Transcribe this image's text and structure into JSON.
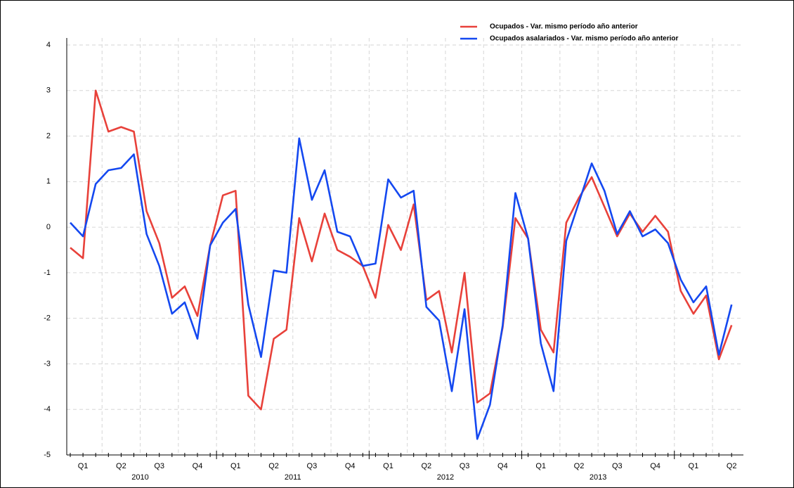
{
  "chart_data": {
    "type": "line",
    "categories": [
      null,
      "Q1",
      null,
      null,
      "Q2",
      null,
      null,
      "Q3",
      null,
      null,
      "Q4",
      null,
      null,
      "Q1",
      null,
      null,
      "Q2",
      null,
      null,
      "Q3",
      null,
      null,
      "Q4",
      null,
      null,
      "Q1",
      null,
      null,
      "Q2",
      null,
      null,
      "Q3",
      null,
      null,
      "Q4",
      null,
      null,
      "Q1",
      null,
      null,
      "Q2",
      null,
      null,
      "Q3",
      null,
      null,
      "Q4",
      null,
      null,
      "Q1",
      null,
      null,
      "Q2"
    ],
    "years": [
      "2010",
      "2011",
      "2012",
      "2013"
    ],
    "series": [
      {
        "name": "Ocupados - Var. mismo período año anterior",
        "color": "#e8413a",
        "values": [
          -0.45,
          -0.68,
          3.0,
          2.1,
          2.2,
          2.1,
          0.35,
          -0.35,
          -1.55,
          -1.3,
          -1.95,
          -0.4,
          0.7,
          0.8,
          -3.7,
          -4.0,
          -2.45,
          -2.25,
          0.2,
          -0.75,
          0.3,
          -0.5,
          -0.65,
          -0.85,
          -1.55,
          0.05,
          -0.5,
          0.5,
          -1.6,
          -1.4,
          -2.75,
          -1.0,
          -3.85,
          -3.65,
          -2.2,
          0.2,
          -0.25,
          -2.25,
          -2.75,
          0.1,
          0.65,
          1.1,
          0.45,
          -0.2,
          0.3,
          -0.1,
          0.25,
          -0.1,
          -1.4,
          -1.9,
          -1.5,
          -2.9,
          -2.15
        ]
      },
      {
        "name": "Ocupados asalariados - Var. mismo período año anterior",
        "color": "#1448f0",
        "values": [
          0.1,
          -0.2,
          0.95,
          1.25,
          1.3,
          1.6,
          -0.15,
          -0.85,
          -1.9,
          -1.65,
          -2.45,
          -0.4,
          0.1,
          0.4,
          -1.7,
          -2.85,
          -0.95,
          -1.0,
          1.95,
          0.6,
          1.25,
          -0.1,
          -0.2,
          -0.85,
          -0.8,
          1.05,
          0.65,
          0.8,
          -1.75,
          -2.05,
          -3.6,
          -1.8,
          -4.65,
          -3.9,
          -2.15,
          0.75,
          -0.25,
          -2.55,
          -3.6,
          -0.3,
          0.55,
          1.4,
          0.8,
          -0.15,
          0.35,
          -0.2,
          -0.05,
          -0.35,
          -1.15,
          -1.65,
          -1.3,
          -2.8,
          -1.7
        ]
      }
    ],
    "ylim": [
      -5,
      4
    ],
    "yticks": [
      -5,
      -4,
      -3,
      -2,
      -1,
      0,
      1,
      2,
      3,
      4
    ],
    "grid": true
  }
}
